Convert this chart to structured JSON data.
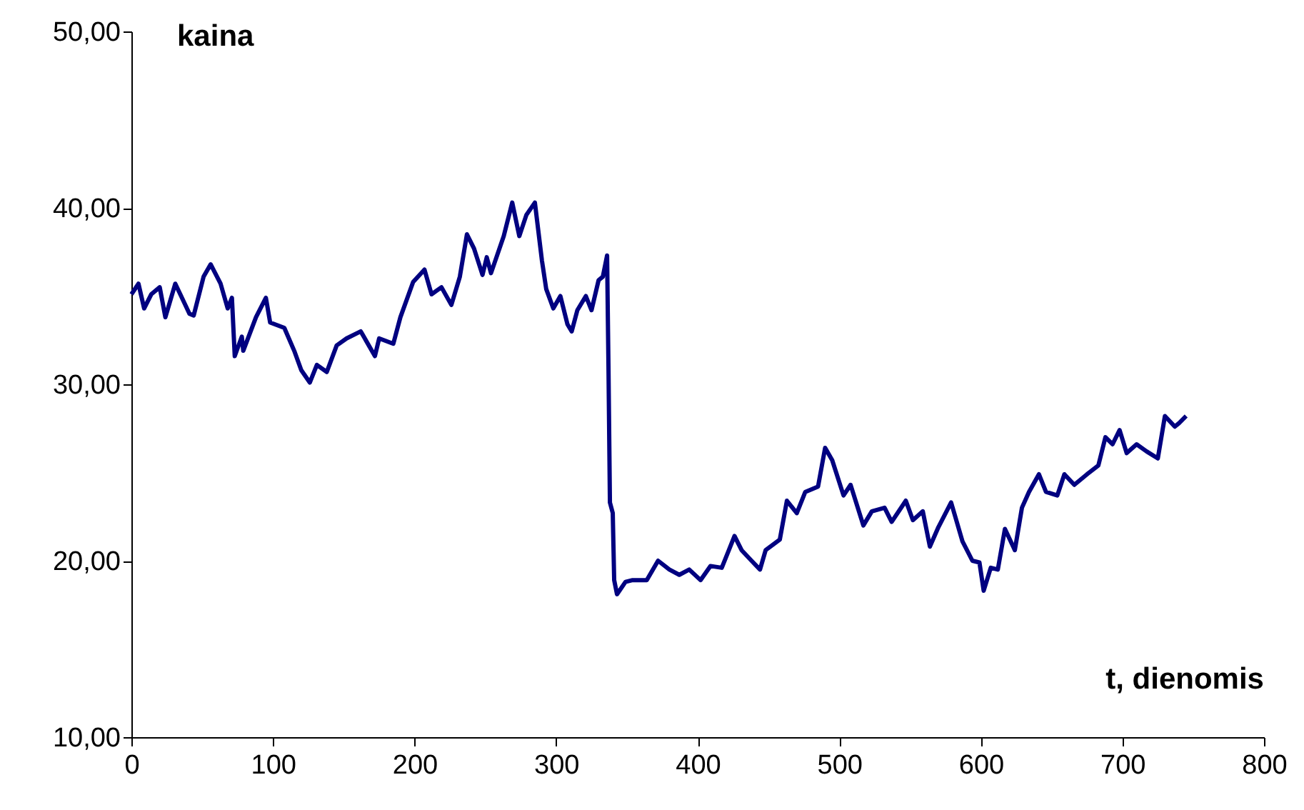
{
  "chart_data": {
    "type": "line",
    "xlabel": "t, dienomis",
    "ylabel": "kaina",
    "x": [
      0,
      5,
      9,
      14,
      20,
      24,
      31,
      41,
      44,
      51,
      56,
      63,
      68,
      71,
      73,
      78,
      79,
      88,
      95,
      98,
      108,
      115,
      120,
      126,
      131,
      138,
      145,
      152,
      162,
      172,
      175,
      185,
      190,
      199,
      207,
      212,
      219,
      226,
      232,
      237,
      242,
      248,
      251,
      254,
      263,
      269,
      274,
      279,
      285,
      290,
      293,
      298,
      303,
      308,
      311,
      315,
      321,
      325,
      330,
      333,
      336,
      337,
      338,
      340,
      341,
      343,
      349,
      354,
      364,
      372,
      380,
      387,
      394,
      402,
      409,
      417,
      426,
      431,
      438,
      444,
      448,
      458,
      463,
      470,
      476,
      485,
      490,
      495,
      503,
      508,
      517,
      523,
      532,
      537,
      547,
      552,
      559,
      564,
      570,
      579,
      587,
      594,
      599,
      602,
      607,
      612,
      617,
      624,
      629,
      634,
      641,
      646,
      654,
      659,
      666,
      675,
      683,
      688,
      693,
      698,
      703,
      710,
      717,
      725,
      730,
      737,
      740,
      745
    ],
    "series": [
      {
        "color": "#000080",
        "values": [
          35.1,
          35.7,
          34.3,
          35.1,
          35.5,
          33.8,
          35.7,
          34.0,
          33.9,
          36.1,
          36.8,
          35.7,
          34.3,
          34.9,
          31.6,
          32.7,
          31.9,
          33.8,
          34.9,
          33.5,
          33.2,
          31.9,
          30.8,
          30.1,
          31.1,
          30.7,
          32.2,
          32.6,
          33.0,
          31.6,
          32.6,
          32.3,
          33.8,
          35.8,
          36.5,
          35.1,
          35.5,
          34.5,
          36.1,
          38.5,
          37.7,
          36.2,
          37.2,
          36.3,
          38.4,
          40.3,
          38.4,
          39.6,
          40.3,
          37.0,
          35.4,
          34.3,
          35.0,
          33.4,
          33.0,
          34.2,
          35.0,
          34.2,
          35.9,
          36.1,
          37.3,
          30.8,
          23.3,
          22.7,
          18.9,
          18.1,
          18.8,
          18.9,
          18.9,
          20.0,
          19.5,
          19.2,
          19.5,
          18.9,
          19.7,
          19.6,
          21.4,
          20.6,
          20.0,
          19.5,
          20.6,
          21.2,
          23.4,
          22.7,
          23.9,
          24.2,
          26.4,
          25.7,
          23.7,
          24.3,
          22.0,
          22.8,
          23.0,
          22.2,
          23.4,
          22.3,
          22.8,
          20.8,
          21.9,
          23.3,
          21.1,
          20.0,
          19.9,
          18.3,
          19.6,
          19.5,
          21.8,
          20.6,
          23.0,
          23.9,
          24.9,
          23.9,
          23.7,
          24.9,
          24.3,
          24.9,
          25.4,
          27.0,
          26.6,
          27.4,
          26.1,
          26.6,
          26.2,
          25.8,
          28.2,
          27.6,
          27.8,
          28.2
        ]
      }
    ],
    "xlim": [
      0,
      800
    ],
    "xticks": [
      0,
      100,
      200,
      300,
      400,
      500,
      600,
      700,
      800
    ],
    "ylim": [
      10,
      50
    ],
    "yticks": [
      {
        "value": 10,
        "label": "10,00"
      },
      {
        "value": 20,
        "label": "20,00"
      },
      {
        "value": 30,
        "label": "30,00"
      },
      {
        "value": 40,
        "label": "40,00"
      },
      {
        "value": 50,
        "label": "50,00"
      }
    ],
    "grid": false,
    "marker": "none",
    "line_style": "solid"
  }
}
